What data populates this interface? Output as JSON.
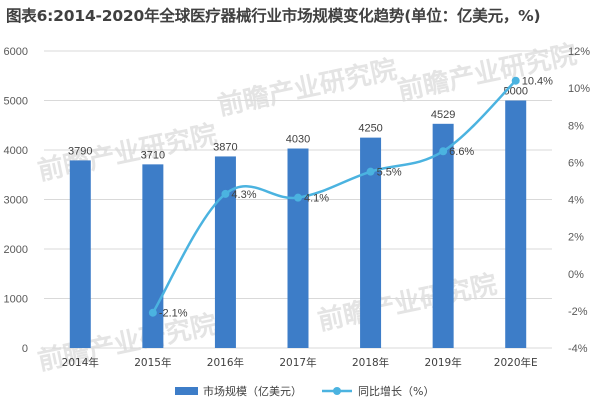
{
  "title": "图表6:2014-2020年全球医疗器械行业市场规模变化趋势(单位：亿美元，%)",
  "watermark": "前瞻产业研究院",
  "colors": {
    "bar": "#3d7dc8",
    "line": "#4bb3e0",
    "grid": "#d9d9d9",
    "axis_text": "#595959"
  },
  "chart_data": {
    "type": "bar",
    "categories": [
      "2014年",
      "2015年",
      "2016年",
      "2017年",
      "2018年",
      "2019年",
      "2020年E"
    ],
    "series": [
      {
        "name": "市场规模（亿美元）",
        "type": "bar",
        "axis": "left",
        "values": [
          3790,
          3710,
          3870,
          4030,
          4250,
          4529,
          5000
        ],
        "labels": [
          "3790",
          "3710",
          "3870",
          "4030",
          "4250",
          "4529",
          "5000"
        ]
      },
      {
        "name": "同比增长（%）",
        "type": "line",
        "axis": "right",
        "values": [
          null,
          -2.1,
          4.3,
          4.1,
          5.5,
          6.6,
          10.4
        ],
        "labels": [
          "",
          "-2.1%",
          "4.3%",
          "4.1%",
          "5.5%",
          "6.6%",
          "10.4%"
        ]
      }
    ],
    "ylim_left": [
      0,
      6000
    ],
    "yticks_left": [
      "0",
      "1000",
      "2000",
      "3000",
      "4000",
      "5000",
      "6000"
    ],
    "ylim_right": [
      -4,
      12
    ],
    "yticks_right": [
      "-4%",
      "-2%",
      "0%",
      "2%",
      "4%",
      "6%",
      "8%",
      "10%",
      "12%"
    ],
    "grid": true,
    "legend": "bottom"
  }
}
